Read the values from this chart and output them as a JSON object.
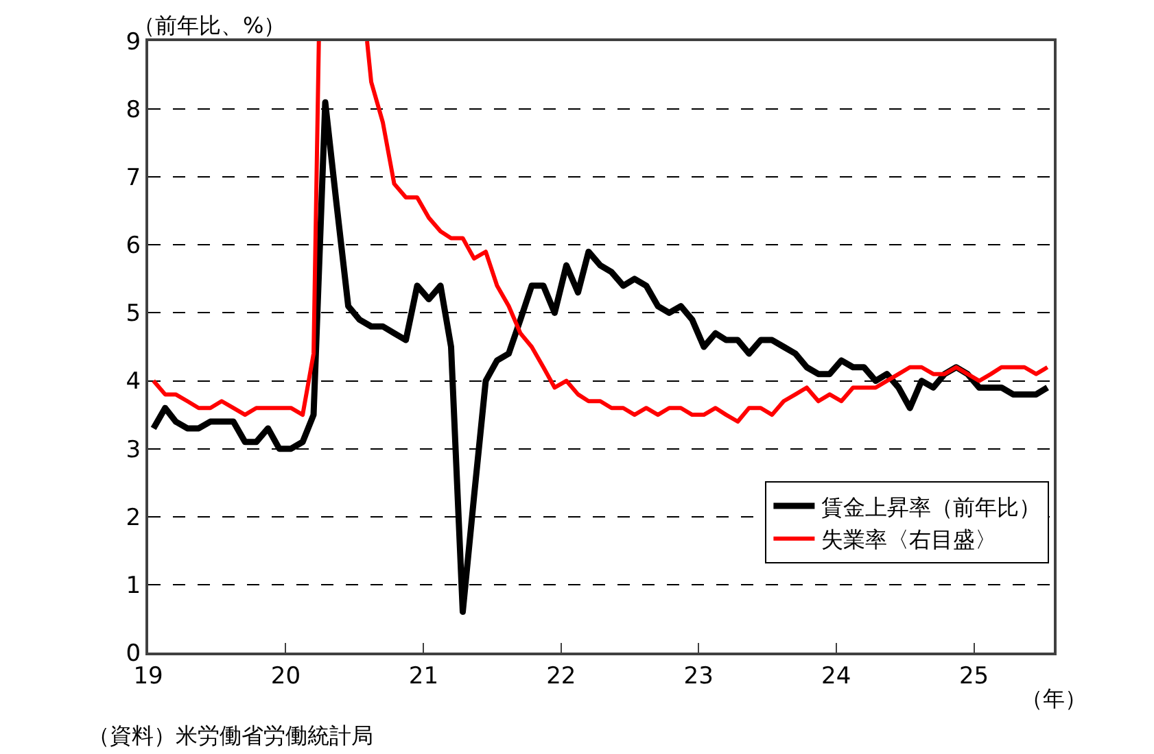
{
  "chart_data": {
    "type": "line",
    "xlabel": "（年）",
    "ylabel": "（前年比、%）",
    "annotations": [
      "（資料）米労働省労働統計局"
    ],
    "xlim": [
      "2019-01-01",
      "2025-08-01"
    ],
    "xticks": [
      {
        "value": "2019-01-01",
        "label": "19"
      },
      {
        "value": "2020-01-01",
        "label": "20"
      },
      {
        "value": "2021-01-01",
        "label": "21"
      },
      {
        "value": "2022-01-01",
        "label": "22"
      },
      {
        "value": "2023-01-01",
        "label": "23"
      },
      {
        "value": "2024-01-01",
        "label": "24"
      },
      {
        "value": "2025-01-01",
        "label": "25"
      }
    ],
    "x": [
      "2019-01-15",
      "2019-02-15",
      "2019-03-15",
      "2019-04-15",
      "2019-05-15",
      "2019-06-15",
      "2019-07-15",
      "2019-08-15",
      "2019-09-15",
      "2019-10-15",
      "2019-11-15",
      "2019-12-15",
      "2020-01-15",
      "2020-02-15",
      "2020-03-15",
      "2020-04-15",
      "2020-05-15",
      "2020-06-15",
      "2020-07-15",
      "2020-08-15",
      "2020-09-15",
      "2020-10-15",
      "2020-11-15",
      "2020-12-15",
      "2021-01-15",
      "2021-02-15",
      "2021-03-15",
      "2021-04-15",
      "2021-05-15",
      "2021-06-15",
      "2021-07-15",
      "2021-08-15",
      "2021-09-15",
      "2021-10-15",
      "2021-11-15",
      "2021-12-15",
      "2022-01-15",
      "2022-02-15",
      "2022-03-15",
      "2022-04-15",
      "2022-05-15",
      "2022-06-15",
      "2022-07-15",
      "2022-08-15",
      "2022-09-15",
      "2022-10-15",
      "2022-11-15",
      "2022-12-15",
      "2023-01-15",
      "2023-02-15",
      "2023-03-15",
      "2023-04-15",
      "2023-05-15",
      "2023-06-15",
      "2023-07-15",
      "2023-08-15",
      "2023-09-15",
      "2023-10-15",
      "2023-11-15",
      "2023-12-15",
      "2024-01-15",
      "2024-02-15",
      "2024-03-15",
      "2024-04-15",
      "2024-05-15",
      "2024-06-15",
      "2024-07-15",
      "2024-08-15",
      "2024-09-15",
      "2024-10-15",
      "2024-11-15",
      "2024-12-15",
      "2025-01-15",
      "2025-02-15",
      "2025-03-15",
      "2025-04-15",
      "2025-05-15",
      "2025-06-15",
      "2025-07-15"
    ],
    "ylim": [
      0,
      9
    ],
    "yticks": [
      0,
      1,
      2,
      3,
      4,
      5,
      6,
      7,
      8,
      9
    ],
    "grid": "y",
    "legend": "bottom right",
    "marker": "none",
    "line_style": "solid",
    "series": [
      {
        "name": "賃金上昇率（前年比）",
        "color": "#000000",
        "values": [
          3.3,
          3.6,
          3.4,
          3.3,
          3.3,
          3.4,
          3.4,
          3.4,
          3.1,
          3.1,
          3.3,
          3.0,
          3.0,
          3.1,
          3.5,
          8.1,
          6.6,
          5.1,
          4.9,
          4.8,
          4.8,
          4.7,
          4.6,
          5.4,
          5.2,
          5.4,
          4.5,
          0.6,
          2.3,
          4.0,
          4.3,
          4.4,
          4.9,
          5.4,
          5.4,
          5.0,
          5.7,
          5.3,
          5.9,
          5.7,
          5.6,
          5.4,
          5.5,
          5.4,
          5.1,
          5.0,
          5.1,
          4.9,
          4.5,
          4.7,
          4.6,
          4.6,
          4.4,
          4.6,
          4.6,
          4.5,
          4.4,
          4.2,
          4.1,
          4.1,
          4.3,
          4.2,
          4.2,
          4.0,
          4.1,
          3.9,
          3.6,
          4.0,
          3.9,
          4.1,
          4.2,
          4.1,
          3.9,
          3.9,
          3.9,
          3.8,
          3.8,
          3.8,
          3.9
        ]
      },
      {
        "name": "失業率〈右目盛〉",
        "color": "#ff0000",
        "x": [
          "2019-01-15",
          "2019-02-15",
          "2019-03-15",
          "2019-04-15",
          "2019-05-15",
          "2019-06-15",
          "2019-07-15",
          "2019-08-15",
          "2019-09-15",
          "2019-10-15",
          "2019-11-15",
          "2019-12-15",
          "2020-01-15",
          "2020-02-15",
          "2020-03-15",
          "2020-03-29",
          "2020-05-15",
          "2020-08-04",
          "2020-08-15",
          "2020-09-15",
          "2020-10-15",
          "2020-11-15",
          "2020-12-15",
          "2021-01-15",
          "2021-02-15",
          "2021-03-15",
          "2021-04-15",
          "2021-05-15",
          "2021-06-15",
          "2021-07-15",
          "2021-08-15",
          "2021-09-15",
          "2021-10-15",
          "2021-11-15",
          "2021-12-15",
          "2022-01-15",
          "2022-02-15",
          "2022-03-15",
          "2022-04-15",
          "2022-05-15",
          "2022-06-15",
          "2022-07-15",
          "2022-08-15",
          "2022-09-15",
          "2022-10-15",
          "2022-11-15",
          "2022-12-15",
          "2023-01-15",
          "2023-02-15",
          "2023-03-15",
          "2023-04-15",
          "2023-05-15",
          "2023-06-15",
          "2023-07-15",
          "2023-08-15",
          "2023-09-15",
          "2023-10-15",
          "2023-11-15",
          "2023-12-15",
          "2024-01-15",
          "2024-02-15",
          "2024-03-15",
          "2024-04-15",
          "2024-05-15",
          "2024-06-15",
          "2024-07-15",
          "2024-08-15",
          "2024-09-15",
          "2024-10-15",
          "2024-11-15",
          "2024-12-15",
          "2025-01-15",
          "2025-02-15",
          "2025-03-15",
          "2025-04-15",
          "2025-05-15",
          "2025-06-15",
          "2025-07-15"
        ],
        "values": [
          4.0,
          3.8,
          3.8,
          3.7,
          3.6,
          3.6,
          3.7,
          3.6,
          3.5,
          3.6,
          3.6,
          3.6,
          3.6,
          3.5,
          4.4,
          9,
          null,
          9,
          8.4,
          7.8,
          6.9,
          6.7,
          6.7,
          6.4,
          6.2,
          6.1,
          6.1,
          5.8,
          5.9,
          5.4,
          5.1,
          4.7,
          4.5,
          4.2,
          3.9,
          4.0,
          3.8,
          3.7,
          3.7,
          3.6,
          3.6,
          3.5,
          3.6,
          3.5,
          3.6,
          3.6,
          3.5,
          3.5,
          3.6,
          3.5,
          3.4,
          3.6,
          3.6,
          3.5,
          3.7,
          3.8,
          3.9,
          3.7,
          3.8,
          3.7,
          3.9,
          3.9,
          3.9,
          4.0,
          4.1,
          4.2,
          4.2,
          4.1,
          4.1,
          4.2,
          4.1,
          4.0,
          4.1,
          4.2,
          4.2,
          4.2,
          4.1,
          4.2
        ]
      }
    ]
  }
}
